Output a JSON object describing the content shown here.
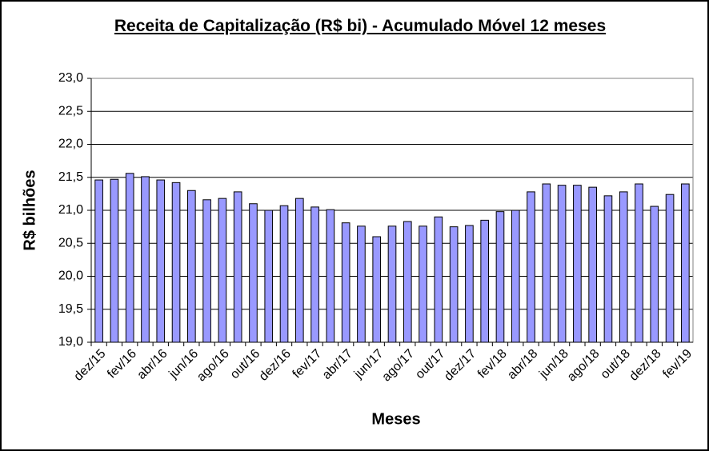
{
  "chart_data": {
    "type": "bar",
    "title": "Receita de Capitalização (R$ bi) - Acumulado Móvel 12 meses",
    "x_label": "Meses",
    "y_label": "R$ bilhões",
    "categories": [
      "dez/15",
      null,
      "fev/16",
      null,
      "abr/16",
      null,
      "jun/16",
      null,
      "ago/16",
      null,
      "out/16",
      null,
      "dez/16",
      null,
      "fev/17",
      null,
      "abr/17",
      null,
      "jun/17",
      null,
      "ago/17",
      null,
      "out/17",
      null,
      "dez/17",
      null,
      "fev/18",
      null,
      "abr/18",
      null,
      "jun/18",
      null,
      "ago/18",
      null,
      "out/18",
      null,
      "dez/18",
      null,
      "fev/19"
    ],
    "values": [
      21.46,
      21.47,
      21.56,
      21.51,
      21.46,
      21.42,
      21.3,
      21.16,
      21.18,
      21.28,
      21.1,
      21.0,
      21.07,
      21.18,
      21.05,
      21.01,
      20.81,
      20.76,
      20.6,
      20.76,
      20.83,
      20.76,
      20.9,
      20.75,
      20.77,
      20.85,
      20.98,
      21.0,
      21.28,
      21.4,
      21.38,
      21.38,
      21.35,
      21.22,
      21.28,
      21.4,
      21.06,
      21.24,
      21.4
    ],
    "color": "#9999ff",
    "ylim": [
      19,
      23
    ],
    "yticks": [
      {
        "value": 19,
        "label": "19,0"
      },
      {
        "value": 19.5,
        "label": "19,5"
      },
      {
        "value": 20,
        "label": "20,0"
      },
      {
        "value": 20.5,
        "label": "20,5"
      },
      {
        "value": 21,
        "label": "21,0"
      },
      {
        "value": 21.5,
        "label": "21,5"
      },
      {
        "value": 22,
        "label": "22,0"
      },
      {
        "value": 22.5,
        "label": "22,5"
      },
      {
        "value": 23,
        "label": "23,0"
      }
    ],
    "grid": true
  }
}
